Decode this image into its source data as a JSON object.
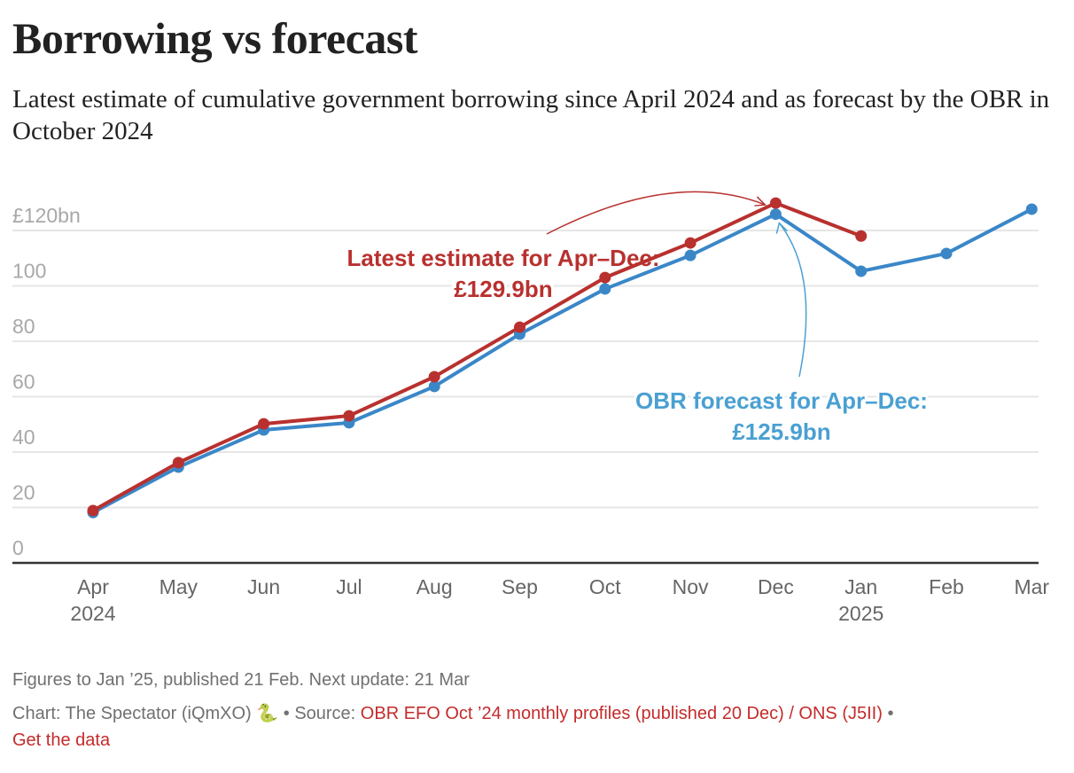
{
  "title": "Borrowing vs forecast",
  "subtitle": "Latest estimate of cumulative government borrowing since April 2024 and as forecast by the OBR in October 2024",
  "chart_data": {
    "type": "line",
    "title": "Borrowing vs forecast",
    "xlabel": "",
    "ylabel": "",
    "categories": [
      "Apr",
      "May",
      "Jun",
      "Jul",
      "Aug",
      "Sep",
      "Oct",
      "Nov",
      "Dec",
      "Jan",
      "Feb",
      "Mar"
    ],
    "category_sublabels": [
      "2024",
      "",
      "",
      "",
      "",
      "",
      "",
      "",
      "",
      "2025",
      "",
      ""
    ],
    "y_ticks": [
      0,
      20,
      40,
      60,
      80,
      100,
      120
    ],
    "y_tick_labels": [
      "0",
      "20",
      "40",
      "60",
      "80",
      "100",
      "£120bn"
    ],
    "ylim": [
      0,
      130
    ],
    "grid": true,
    "series": [
      {
        "name": "Latest estimate",
        "color": "#b8312f",
        "values": [
          18.9,
          36.2,
          50.2,
          53.1,
          67.2,
          85.1,
          103.0,
          115.5,
          129.9,
          118.0,
          null,
          null
        ]
      },
      {
        "name": "OBR forecast",
        "color": "#3a87c8",
        "values": [
          18.2,
          34.6,
          48.0,
          50.6,
          63.7,
          82.6,
          98.9,
          111.0,
          125.9,
          105.3,
          111.7,
          127.7
        ]
      }
    ],
    "annotations": [
      {
        "series": "Latest estimate",
        "target": "Dec",
        "line1": "Latest estimate for Apr–Dec:",
        "line2": "£129.9bn",
        "color": "#b8312f"
      },
      {
        "series": "OBR forecast",
        "target": "Dec",
        "line1": "OBR forecast for Apr–Dec:",
        "line2": "£125.9bn",
        "color": "#4aa0d2"
      }
    ]
  },
  "notes": {
    "figures": "Figures to Jan ’25, published 21 Feb. Next update: 21 Mar",
    "chart_credit": "Chart: The Spectator (iQmXO) ",
    "credit_icon": "🐍",
    "separator": " • ",
    "source_label": "Source: ",
    "source_link": "OBR EFO Oct ’24 monthly profiles (published 20 Dec) / ONS (J5II)",
    "get_data": "Get the data"
  }
}
